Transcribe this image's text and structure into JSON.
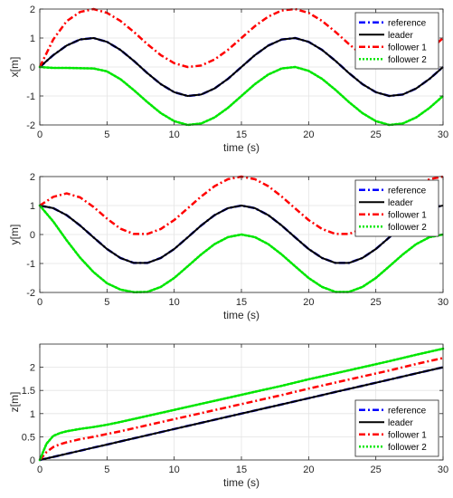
{
  "chart_data": [
    {
      "type": "line",
      "xlabel": "time (s)",
      "ylabel": "x[m]",
      "xlim": [
        0,
        30
      ],
      "ylim": [
        -2,
        2
      ],
      "xticks": [
        "0",
        "5",
        "10",
        "15",
        "20",
        "25",
        "30"
      ],
      "yticks": [
        "-2",
        "-1",
        "0",
        "1",
        "2"
      ],
      "grid": true,
      "legend_position": "top-right",
      "x": [
        0,
        1,
        2,
        3,
        4,
        5,
        6,
        7,
        8,
        9,
        10,
        11,
        12,
        13,
        14,
        15,
        16,
        17,
        18,
        19,
        20,
        21,
        22,
        23,
        24,
        25,
        26,
        27,
        28,
        29,
        30
      ],
      "series": [
        {
          "name": "reference",
          "color": "#0000ff",
          "dash": "dashdot",
          "values": [
            0,
            0.41,
            0.74,
            0.95,
            1.0,
            0.87,
            0.59,
            0.21,
            -0.21,
            -0.59,
            -0.87,
            -1.0,
            -0.95,
            -0.74,
            -0.41,
            0,
            0.41,
            0.74,
            0.95,
            1.0,
            0.87,
            0.59,
            0.21,
            -0.21,
            -0.59,
            -0.87,
            -1.0,
            -0.95,
            -0.74,
            -0.41,
            0
          ]
        },
        {
          "name": "leader",
          "color": "#000000",
          "dash": "solid",
          "values": [
            0,
            0.41,
            0.74,
            0.95,
            1.0,
            0.87,
            0.59,
            0.21,
            -0.21,
            -0.59,
            -0.87,
            -1.0,
            -0.95,
            -0.74,
            -0.41,
            0,
            0.41,
            0.74,
            0.95,
            1.0,
            0.87,
            0.59,
            0.21,
            -0.21,
            -0.59,
            -0.87,
            -1.0,
            -0.95,
            -0.74,
            -0.41,
            0
          ]
        },
        {
          "name": "follower 1",
          "color": "#ff0000",
          "dash": "dashdot",
          "values": [
            0,
            0.95,
            1.58,
            1.9,
            2.0,
            1.87,
            1.59,
            1.21,
            0.79,
            0.41,
            0.13,
            0.0,
            0.05,
            0.26,
            0.59,
            1.0,
            1.41,
            1.74,
            1.95,
            2.0,
            1.87,
            1.59,
            1.21,
            0.79,
            0.41,
            0.13,
            0.0,
            0.05,
            0.26,
            0.59,
            1.0
          ]
        },
        {
          "name": "follower 2",
          "color": "#00e600",
          "dash": "dotted",
          "values": [
            0,
            -0.03,
            -0.03,
            -0.04,
            -0.05,
            -0.15,
            -0.42,
            -0.8,
            -1.21,
            -1.59,
            -1.87,
            -2.0,
            -1.95,
            -1.74,
            -1.41,
            -1.0,
            -0.59,
            -0.26,
            -0.05,
            0.0,
            -0.13,
            -0.41,
            -0.79,
            -1.21,
            -1.59,
            -1.87,
            -2.0,
            -1.95,
            -1.74,
            -1.41,
            -1.0
          ]
        }
      ]
    },
    {
      "type": "line",
      "xlabel": "time (s)",
      "ylabel": "y[m]",
      "xlim": [
        0,
        30
      ],
      "ylim": [
        -2,
        2
      ],
      "xticks": [
        "0",
        "5",
        "10",
        "15",
        "20",
        "25",
        "30"
      ],
      "yticks": [
        "-2",
        "-1",
        "0",
        "1",
        "2"
      ],
      "grid": true,
      "legend_position": "top-right",
      "x": [
        0,
        1,
        2,
        3,
        4,
        5,
        6,
        7,
        8,
        9,
        10,
        11,
        12,
        13,
        14,
        15,
        16,
        17,
        18,
        19,
        20,
        21,
        22,
        23,
        24,
        25,
        26,
        27,
        28,
        29,
        30
      ],
      "series": [
        {
          "name": "reference",
          "color": "#0000ff",
          "dash": "dashdot",
          "values": [
            1.0,
            0.91,
            0.67,
            0.31,
            -0.1,
            -0.5,
            -0.81,
            -0.98,
            -0.98,
            -0.81,
            -0.5,
            -0.1,
            0.31,
            0.67,
            0.91,
            1.0,
            0.91,
            0.67,
            0.31,
            -0.1,
            -0.5,
            -0.81,
            -0.98,
            -0.98,
            -0.81,
            -0.5,
            -0.1,
            0.31,
            0.67,
            0.91,
            1.0
          ]
        },
        {
          "name": "leader",
          "color": "#000000",
          "dash": "solid",
          "values": [
            1.0,
            0.91,
            0.67,
            0.31,
            -0.1,
            -0.5,
            -0.81,
            -0.98,
            -0.98,
            -0.81,
            -0.5,
            -0.1,
            0.31,
            0.67,
            0.91,
            1.0,
            0.91,
            0.67,
            0.31,
            -0.1,
            -0.5,
            -0.81,
            -0.98,
            -0.98,
            -0.81,
            -0.5,
            -0.1,
            0.31,
            0.67,
            0.91,
            1.0
          ]
        },
        {
          "name": "follower 1",
          "color": "#ff0000",
          "dash": "dashdot",
          "values": [
            1.0,
            1.3,
            1.42,
            1.28,
            0.95,
            0.55,
            0.2,
            0.02,
            0.02,
            0.19,
            0.5,
            0.9,
            1.31,
            1.67,
            1.91,
            2.0,
            1.91,
            1.67,
            1.31,
            0.9,
            0.5,
            0.19,
            0.02,
            0.02,
            0.19,
            0.5,
            0.9,
            1.31,
            1.67,
            1.91,
            2.0
          ]
        },
        {
          "name": "follower 2",
          "color": "#00e600",
          "dash": "dotted",
          "values": [
            1.0,
            0.45,
            -0.2,
            -0.8,
            -1.3,
            -1.68,
            -1.9,
            -1.99,
            -1.98,
            -1.81,
            -1.5,
            -1.1,
            -0.69,
            -0.33,
            -0.09,
            0.0,
            -0.09,
            -0.33,
            -0.69,
            -1.1,
            -1.5,
            -1.81,
            -1.98,
            -1.98,
            -1.81,
            -1.5,
            -1.1,
            -0.69,
            -0.33,
            -0.09,
            0.0
          ]
        }
      ]
    },
    {
      "type": "line",
      "xlabel": "time (s)",
      "ylabel": "z[m]",
      "xlim": [
        0,
        30
      ],
      "ylim": [
        0,
        2.5
      ],
      "xticks": [
        "0",
        "5",
        "10",
        "15",
        "20",
        "25",
        "30"
      ],
      "yticks": [
        "0",
        "0.5",
        "1",
        "1.5",
        "2"
      ],
      "grid": true,
      "legend_position": "bottom-right",
      "x": [
        0,
        0.5,
        1,
        1.5,
        2,
        3,
        4,
        5,
        6,
        8,
        10,
        12,
        14,
        16,
        18,
        20,
        22,
        24,
        26,
        28,
        30
      ],
      "series": [
        {
          "name": "reference",
          "color": "#0000ff",
          "dash": "dashdot",
          "values": [
            0,
            0.033,
            0.067,
            0.1,
            0.133,
            0.2,
            0.267,
            0.333,
            0.4,
            0.533,
            0.667,
            0.8,
            0.933,
            1.067,
            1.2,
            1.333,
            1.467,
            1.6,
            1.733,
            1.867,
            2.0
          ]
        },
        {
          "name": "leader",
          "color": "#000000",
          "dash": "solid",
          "values": [
            0,
            0.033,
            0.067,
            0.1,
            0.133,
            0.2,
            0.267,
            0.333,
            0.4,
            0.533,
            0.667,
            0.8,
            0.933,
            1.067,
            1.2,
            1.333,
            1.467,
            1.6,
            1.733,
            1.867,
            2.0
          ]
        },
        {
          "name": "follower 1",
          "color": "#ff0000",
          "dash": "dashdot",
          "values": [
            0,
            0.17,
            0.28,
            0.34,
            0.38,
            0.45,
            0.5,
            0.56,
            0.62,
            0.75,
            0.88,
            1.01,
            1.14,
            1.27,
            1.4,
            1.54,
            1.67,
            1.8,
            1.93,
            2.07,
            2.2
          ]
        },
        {
          "name": "follower 2",
          "color": "#00e600",
          "dash": "dotted",
          "values": [
            0,
            0.35,
            0.52,
            0.58,
            0.62,
            0.67,
            0.71,
            0.76,
            0.82,
            0.95,
            1.08,
            1.21,
            1.34,
            1.47,
            1.6,
            1.74,
            1.87,
            2.0,
            2.13,
            2.27,
            2.4
          ]
        }
      ]
    }
  ]
}
